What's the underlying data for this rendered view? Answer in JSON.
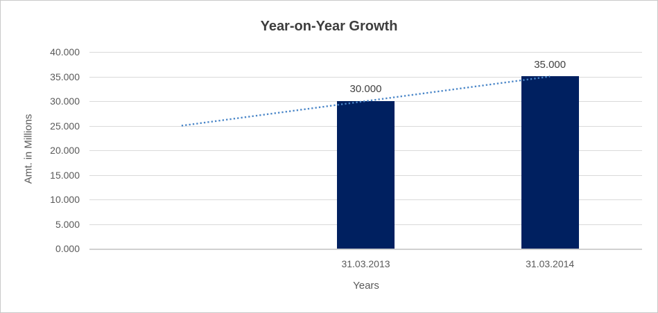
{
  "chart_data": {
    "type": "bar",
    "title": "Year-on-Year Growth",
    "xlabel": "Years",
    "ylabel": "Amt. in Millions",
    "categories": [
      "31.03.2013",
      "31.03.2014"
    ],
    "values": [
      30.0,
      35.0
    ],
    "value_labels": [
      "30.000",
      "35.000"
    ],
    "ylim": [
      0,
      40
    ],
    "y_tick_step": 5,
    "y_ticks": [
      {
        "value": 40,
        "label": "40.000"
      },
      {
        "value": 35,
        "label": "35.000"
      },
      {
        "value": 30,
        "label": "30.000"
      },
      {
        "value": 25,
        "label": "25.000"
      },
      {
        "value": 20,
        "label": "20.000"
      },
      {
        "value": 15,
        "label": "15.000"
      },
      {
        "value": 10,
        "label": "10.000"
      },
      {
        "value": 5,
        "label": "5.000"
      },
      {
        "value": 0,
        "label": "0.000"
      }
    ],
    "grid": true,
    "legend": "none",
    "slot_count": 3,
    "bar_slots": [
      1,
      2
    ],
    "trendline": {
      "style": "dotted",
      "color": "#4A86C8",
      "start_slot": 0,
      "end_slot": 2,
      "start_value": 25.0,
      "end_value": 35.0
    },
    "colors": {
      "bar": "#002060",
      "trendline": "#4A86C8",
      "gridline": "#D9D9D9",
      "axis_line": "#D0D0D0",
      "title_text": "#3D3D3D",
      "tick_text": "#595959",
      "value_label_text": "#404040",
      "border": "#C9C9C9"
    }
  }
}
